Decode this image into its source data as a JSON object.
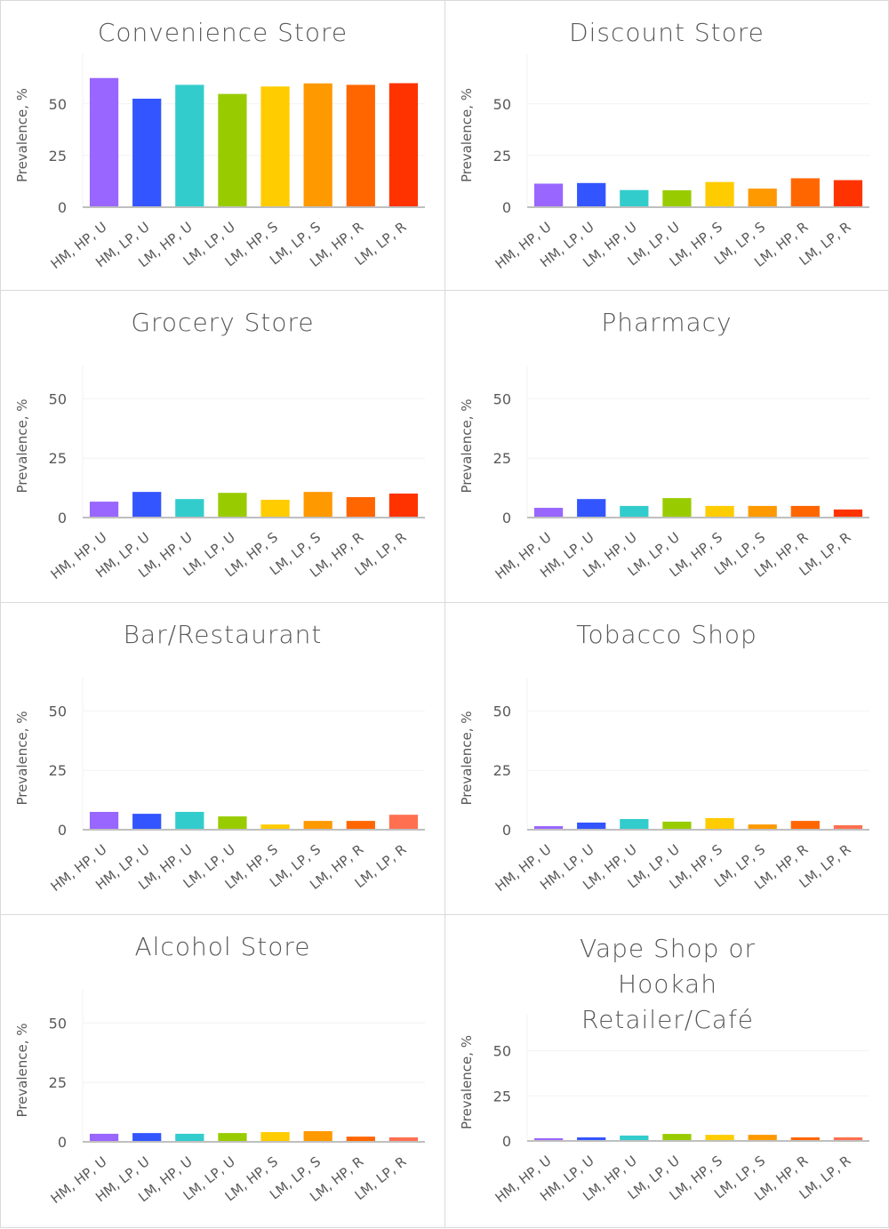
{
  "chart_data": [
    {
      "type": "bar",
      "title": "Convenience Store",
      "ylabel": "Prevalence, %",
      "ylim": [
        0,
        74
      ],
      "yticks": [
        0,
        25,
        50
      ],
      "grid": true,
      "categories": [
        "HM, HP, U",
        "HM, LP, U",
        "LM, HP, U",
        "LM, LP, U",
        "LM, HP, S",
        "LM, LP, S",
        "LM, HP, R",
        "LM, LP, R"
      ],
      "values": [
        62.5,
        52.5,
        59.2,
        54.8,
        58.4,
        59.9,
        59.2,
        60.0
      ],
      "colors": [
        "#9966FF",
        "#3355FF",
        "#33CCCC",
        "#99CC00",
        "#FFCC00",
        "#FF9900",
        "#FF6600",
        "#FF3300"
      ]
    },
    {
      "type": "bar",
      "title": "Discount Store",
      "ylabel": "Prevalence, %",
      "ylim": [
        0,
        74
      ],
      "yticks": [
        0,
        25,
        50
      ],
      "grid": true,
      "categories": [
        "HM, HP, U",
        "HM, LP, U",
        "LM, HP, U",
        "LM, LP, U",
        "LM, HP, S",
        "LM, LP, S",
        "LM, HP, R",
        "LM, LP, R"
      ],
      "values": [
        11.4,
        11.7,
        8.3,
        8.2,
        12.2,
        9.0,
        14.0,
        13.1
      ],
      "colors": [
        "#9966FF",
        "#3355FF",
        "#33CCCC",
        "#99CC00",
        "#FFCC00",
        "#FF9900",
        "#FF6600",
        "#FF3300"
      ]
    },
    {
      "type": "bar",
      "title": "Grocery Store",
      "ylabel": "Prevalence, %",
      "ylim": [
        0,
        64
      ],
      "yticks": [
        0,
        25,
        50
      ],
      "grid": true,
      "categories": [
        "HM, HP, U",
        "HM, LP, U",
        "LM, HP, U",
        "LM, LP, U",
        "LM, HP, S",
        "LM, LP, S",
        "LM, HP, R",
        "LM, LP, R"
      ],
      "values": [
        6.7,
        10.8,
        7.8,
        10.4,
        7.5,
        10.8,
        8.6,
        10.1
      ],
      "colors": [
        "#9966FF",
        "#3355FF",
        "#33CCCC",
        "#99CC00",
        "#FFCC00",
        "#FF9900",
        "#FF6600",
        "#FF3300"
      ]
    },
    {
      "type": "bar",
      "title": "Pharmacy",
      "ylabel": "Prevalence, %",
      "ylim": [
        0,
        64
      ],
      "yticks": [
        0,
        25,
        50
      ],
      "grid": true,
      "categories": [
        "HM, HP, U",
        "HM, LP, U",
        "LM, HP, U",
        "LM, LP, U",
        "LM, HP, S",
        "LM, LP, S",
        "LM, HP, R",
        "LM, LP, R"
      ],
      "values": [
        4.1,
        7.8,
        4.9,
        8.2,
        4.9,
        4.9,
        4.9,
        3.4
      ],
      "colors": [
        "#9966FF",
        "#3355FF",
        "#33CCCC",
        "#99CC00",
        "#FFCC00",
        "#FF9900",
        "#FF6600",
        "#FF3300"
      ]
    },
    {
      "type": "bar",
      "title": "Bar/Restaurant",
      "ylabel": "Prevalence, %",
      "ylim": [
        0,
        64
      ],
      "yticks": [
        0,
        25,
        50
      ],
      "grid": true,
      "categories": [
        "HM, HP, U",
        "HM, LP, U",
        "LM, HP, U",
        "LM, LP, U",
        "LM, HP, S",
        "LM, LP, S",
        "LM, HP, R",
        "LM, LP, R"
      ],
      "values": [
        7.5,
        6.7,
        7.5,
        5.6,
        2.2,
        3.7,
        3.7,
        6.3
      ],
      "colors": [
        "#9966FF",
        "#3355FF",
        "#33CCCC",
        "#99CC00",
        "#FFCC00",
        "#FF9900",
        "#FF6600",
        "#FF7050"
      ]
    },
    {
      "type": "bar",
      "title": "Tobacco Shop",
      "ylabel": "Prevalence, %",
      "ylim": [
        0,
        64
      ],
      "yticks": [
        0,
        25,
        50
      ],
      "grid": true,
      "categories": [
        "HM, HP, U",
        "HM, LP, U",
        "LM, HP, U",
        "LM, LP, U",
        "LM, HP, S",
        "LM, LP, S",
        "LM, HP, R",
        "LM, LP, R"
      ],
      "values": [
        1.5,
        3.0,
        4.5,
        3.4,
        4.9,
        2.2,
        3.7,
        1.9
      ],
      "colors": [
        "#9966FF",
        "#3355FF",
        "#33CCCC",
        "#99CC00",
        "#FFCC00",
        "#FF9900",
        "#FF6600",
        "#FF7050"
      ]
    },
    {
      "type": "bar",
      "title": "Alcohol Store",
      "ylabel": "Prevalence, %",
      "ylim": [
        0,
        64
      ],
      "yticks": [
        0,
        25,
        50
      ],
      "grid": true,
      "categories": [
        "HM, HP, U",
        "HM, LP, U",
        "LM, HP, U",
        "LM, LP, U",
        "LM, HP, S",
        "LM, LP, S",
        "LM, HP, R",
        "LM, LP, R"
      ],
      "values": [
        3.4,
        3.7,
        3.4,
        3.7,
        4.1,
        4.5,
        2.2,
        1.9
      ],
      "colors": [
        "#9966FF",
        "#3355FF",
        "#33CCCC",
        "#99CC00",
        "#FFCC00",
        "#FF9900",
        "#FF6600",
        "#FF7050"
      ]
    },
    {
      "type": "bar",
      "title": "Vape Shop or Hookah Retailer/Café",
      "ylabel": "Prevalence, %",
      "ylim": [
        0,
        70
      ],
      "yticks": [
        0,
        25,
        50
      ],
      "grid": true,
      "categories": [
        "HM, HP, U",
        "HM, LP, U",
        "LM, HP, U",
        "LM, LP, U",
        "LM, HP, S",
        "LM, LP, S",
        "LM, HP, R",
        "LM, LP, R"
      ],
      "values": [
        1.5,
        2.0,
        3.0,
        3.9,
        3.4,
        3.4,
        2.0,
        2.0
      ],
      "colors": [
        "#9966FF",
        "#3355FF",
        "#33CCCC",
        "#99CC00",
        "#FFCC00",
        "#FF9900",
        "#FF6600",
        "#FF7050"
      ]
    }
  ]
}
